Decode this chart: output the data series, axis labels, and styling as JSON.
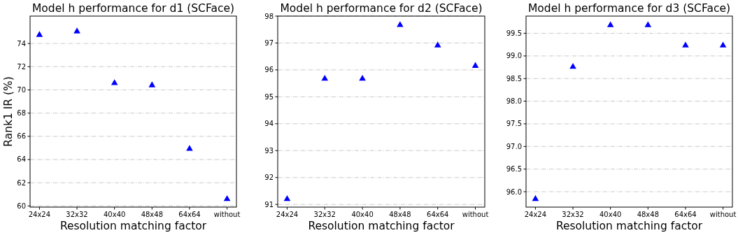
{
  "chart_data": [
    {
      "type": "scatter",
      "title": "Model h performance for d1 (SCFace)",
      "xlabel": "Resolution matching factor",
      "ylabel": "Rank1 IR (%)",
      "categories": [
        "24x24",
        "32x32",
        "40x40",
        "48x48",
        "64x64",
        "without"
      ],
      "series": [
        {
          "color": "#0000ff",
          "values": [
            74.74,
            75.04,
            70.59,
            70.4,
            64.92,
            60.59
          ]
        }
      ],
      "ylim": [
        59.9,
        76.36
      ],
      "yticks": [
        60,
        62,
        64,
        66,
        68,
        70,
        72,
        74
      ],
      "grid": "y",
      "marker": "triangle"
    },
    {
      "type": "scatter",
      "title": "Model h performance for d2 (SCFace)",
      "xlabel": "Resolution matching factor",
      "categories": [
        "24x24",
        "32x32",
        "40x40",
        "48x48",
        "64x64",
        "without"
      ],
      "series": [
        {
          "color": "#0000ff",
          "values": [
            91.2,
            95.67,
            95.67,
            97.67,
            96.91,
            96.15
          ]
        }
      ],
      "ylim": [
        90.9,
        98
      ],
      "yticks": [
        91,
        92,
        93,
        94,
        95,
        96,
        97,
        98
      ],
      "grid": "y",
      "marker": "triangle"
    },
    {
      "type": "scatter",
      "title": "Model h performance for d3 (SCFace)",
      "xlabel": "Resolution matching factor",
      "categories": [
        "24x24",
        "32x32",
        "40x40",
        "48x48",
        "64x64",
        "without"
      ],
      "series": [
        {
          "color": "#0000ff",
          "values": [
            95.84,
            98.76,
            99.68,
            99.68,
            99.23,
            99.23
          ]
        }
      ],
      "ylim": [
        95.66,
        99.88
      ],
      "yticks": [
        {
          "value": 96,
          "label": "96.0"
        },
        {
          "value": 96.5,
          "label": "96.5"
        },
        {
          "value": 97,
          "label": "97.0"
        },
        {
          "value": 97.5,
          "label": "97.5"
        },
        {
          "value": 98,
          "label": "98.0"
        },
        {
          "value": 98.5,
          "label": "98.5"
        },
        {
          "value": 99,
          "label": "99.0"
        },
        {
          "value": 99.5,
          "label": "99.5"
        }
      ],
      "grid": "y",
      "marker": "triangle"
    }
  ]
}
